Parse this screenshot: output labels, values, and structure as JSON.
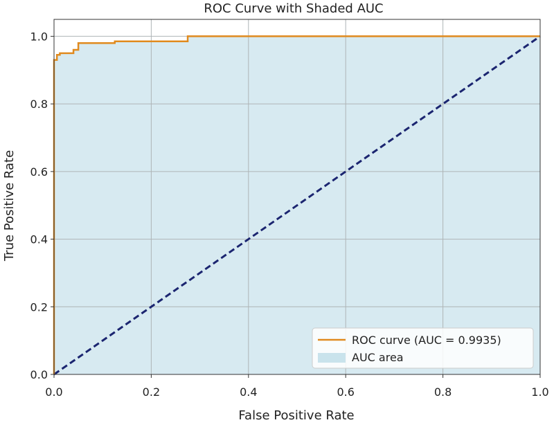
{
  "chart_data": {
    "type": "line",
    "title": "ROC Curve with Shaded AUC",
    "xlabel": "False Positive Rate",
    "ylabel": "True Positive Rate",
    "xlim": [
      0,
      1
    ],
    "ylim": [
      0,
      1.05
    ],
    "xticks": [
      0.0,
      0.2,
      0.4,
      0.6,
      0.8,
      1.0
    ],
    "yticks": [
      0.0,
      0.2,
      0.4,
      0.6,
      0.8,
      1.0
    ],
    "xtick_labels": [
      "0.0",
      "0.2",
      "0.4",
      "0.6",
      "0.8",
      "1.0"
    ],
    "ytick_labels": [
      "0.0",
      "0.2",
      "0.4",
      "0.6",
      "0.8",
      "1.0"
    ],
    "grid": true,
    "legend_position": "lower-right",
    "series": [
      {
        "name": "ROC curve (AUC = 0.9935)",
        "kind": "line",
        "color": "#e08a1e",
        "x": [
          0.0,
          0.0,
          0.006,
          0.006,
          0.012,
          0.012,
          0.04,
          0.04,
          0.05,
          0.05,
          0.125,
          0.125,
          0.275,
          0.275,
          1.0
        ],
        "y": [
          0.0,
          0.93,
          0.93,
          0.945,
          0.945,
          0.95,
          0.95,
          0.96,
          0.96,
          0.98,
          0.98,
          0.985,
          0.985,
          1.0,
          1.0
        ]
      },
      {
        "name": "AUC area",
        "kind": "area",
        "color": "#c9e3ec"
      },
      {
        "name": "",
        "kind": "reference",
        "color": "#1b2570",
        "x": [
          0.0,
          1.0
        ],
        "y": [
          0.0,
          1.0
        ]
      }
    ]
  }
}
